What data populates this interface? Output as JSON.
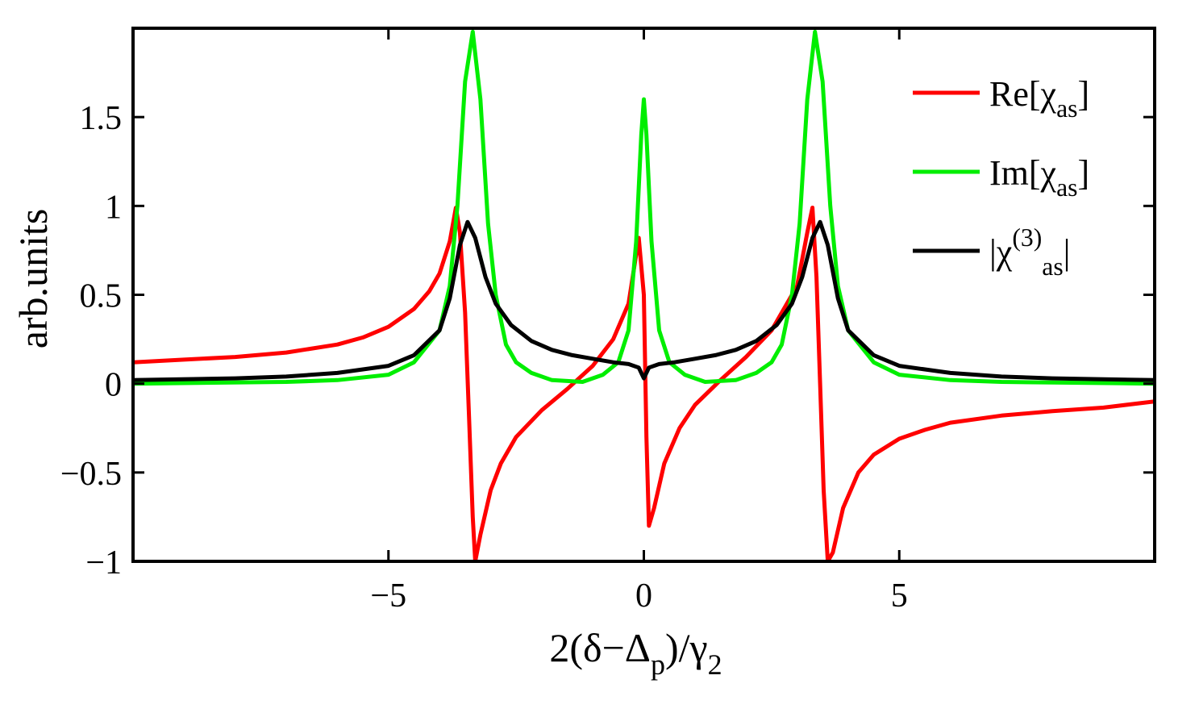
{
  "chart_data": {
    "type": "line",
    "title": "",
    "xlabel": {
      "parts": [
        {
          "text": "2(δ−Δ",
          "shift": "base"
        },
        {
          "text": "p",
          "shift": "sub"
        },
        {
          "text": ")/γ",
          "shift": "base"
        },
        {
          "text": "2",
          "shift": "sub"
        }
      ]
    },
    "ylabel": "arb.units",
    "xlim": [
      -10,
      10
    ],
    "ylim": [
      -1,
      2
    ],
    "xticks": [
      -5,
      0,
      5
    ],
    "xtick_labels": [
      "−5",
      "0",
      "5"
    ],
    "yticks": [
      -1,
      -0.5,
      0,
      0.5,
      1,
      1.5
    ],
    "ytick_labels": [
      "−1",
      "−0.5",
      "0",
      "0.5",
      "1",
      "1.5"
    ],
    "grid": false,
    "legend_position": "top-right",
    "series": [
      {
        "name": "Re[χas]",
        "legend": [
          {
            "text": "Re[χ",
            "shift": "base"
          },
          {
            "text": "as",
            "shift": "sub"
          },
          {
            "text": "]",
            "shift": "base"
          }
        ],
        "color": "#ff0000",
        "points": [
          [
            -10,
            0.12
          ],
          [
            -9,
            0.135
          ],
          [
            -8,
            0.15
          ],
          [
            -7,
            0.175
          ],
          [
            -6,
            0.22
          ],
          [
            -5.5,
            0.26
          ],
          [
            -5,
            0.32
          ],
          [
            -4.5,
            0.42
          ],
          [
            -4.2,
            0.52
          ],
          [
            -4,
            0.62
          ],
          [
            -3.8,
            0.8
          ],
          [
            -3.68,
            0.99
          ],
          [
            -3.6,
            0.85
          ],
          [
            -3.5,
            0.4
          ],
          [
            -3.42,
            -0.2
          ],
          [
            -3.35,
            -0.75
          ],
          [
            -3.3,
            -1.0
          ],
          [
            -3.2,
            -0.85
          ],
          [
            -3.0,
            -0.6
          ],
          [
            -2.8,
            -0.45
          ],
          [
            -2.5,
            -0.3
          ],
          [
            -2.0,
            -0.15
          ],
          [
            -1.5,
            -0.03
          ],
          [
            -1.0,
            0.1
          ],
          [
            -0.6,
            0.25
          ],
          [
            -0.3,
            0.45
          ],
          [
            -0.1,
            0.82
          ],
          [
            0.0,
            0.5
          ],
          [
            0.05,
            -0.3
          ],
          [
            0.1,
            -0.8
          ],
          [
            0.2,
            -0.7
          ],
          [
            0.4,
            -0.45
          ],
          [
            0.7,
            -0.25
          ],
          [
            1.0,
            -0.12
          ],
          [
            1.5,
            0.02
          ],
          [
            2.0,
            0.15
          ],
          [
            2.5,
            0.3
          ],
          [
            3.0,
            0.55
          ],
          [
            3.2,
            0.85
          ],
          [
            3.3,
            0.99
          ],
          [
            3.38,
            0.6
          ],
          [
            3.45,
            0.0
          ],
          [
            3.52,
            -0.6
          ],
          [
            3.6,
            -1.0
          ],
          [
            3.7,
            -0.95
          ],
          [
            3.9,
            -0.7
          ],
          [
            4.2,
            -0.5
          ],
          [
            4.5,
            -0.4
          ],
          [
            5.0,
            -0.31
          ],
          [
            5.5,
            -0.26
          ],
          [
            6,
            -0.22
          ],
          [
            7,
            -0.18
          ],
          [
            8,
            -0.155
          ],
          [
            9,
            -0.135
          ],
          [
            10,
            -0.1
          ]
        ]
      },
      {
        "name": "Im[χas]",
        "legend": [
          {
            "text": "Im[χ",
            "shift": "base"
          },
          {
            "text": "as",
            "shift": "sub"
          },
          {
            "text": "]",
            "shift": "base"
          }
        ],
        "color": "#00ee00",
        "points": [
          [
            -10,
            0.0
          ],
          [
            -7,
            0.01
          ],
          [
            -6,
            0.02
          ],
          [
            -5,
            0.05
          ],
          [
            -4.5,
            0.12
          ],
          [
            -4.0,
            0.3
          ],
          [
            -3.8,
            0.55
          ],
          [
            -3.65,
            1.0
          ],
          [
            -3.5,
            1.7
          ],
          [
            -3.35,
            1.98
          ],
          [
            -3.2,
            1.6
          ],
          [
            -3.05,
            0.9
          ],
          [
            -2.9,
            0.5
          ],
          [
            -2.7,
            0.22
          ],
          [
            -2.5,
            0.12
          ],
          [
            -2.2,
            0.06
          ],
          [
            -1.8,
            0.02
          ],
          [
            -1.2,
            0.01
          ],
          [
            -0.8,
            0.05
          ],
          [
            -0.5,
            0.12
          ],
          [
            -0.3,
            0.3
          ],
          [
            -0.15,
            0.8
          ],
          [
            -0.05,
            1.4
          ],
          [
            0.0,
            1.6
          ],
          [
            0.05,
            1.4
          ],
          [
            0.15,
            0.8
          ],
          [
            0.3,
            0.3
          ],
          [
            0.5,
            0.12
          ],
          [
            0.8,
            0.05
          ],
          [
            1.2,
            0.01
          ],
          [
            1.8,
            0.02
          ],
          [
            2.2,
            0.06
          ],
          [
            2.5,
            0.12
          ],
          [
            2.7,
            0.22
          ],
          [
            2.9,
            0.5
          ],
          [
            3.05,
            0.9
          ],
          [
            3.2,
            1.6
          ],
          [
            3.35,
            1.98
          ],
          [
            3.5,
            1.7
          ],
          [
            3.65,
            1.0
          ],
          [
            3.8,
            0.55
          ],
          [
            4.0,
            0.3
          ],
          [
            4.5,
            0.12
          ],
          [
            5,
            0.05
          ],
          [
            6,
            0.02
          ],
          [
            7,
            0.01
          ],
          [
            10,
            0.0
          ]
        ]
      },
      {
        "name": "|χas(3)|",
        "legend": [
          {
            "text": "|χ",
            "shift": "base"
          },
          {
            "text": "(3)",
            "shift": "sup"
          },
          {
            "text": "as",
            "shift": "sub"
          },
          {
            "text": "|",
            "shift": "base"
          }
        ],
        "color": "#000000",
        "points": [
          [
            -10,
            0.02
          ],
          [
            -8,
            0.03
          ],
          [
            -7,
            0.04
          ],
          [
            -6,
            0.06
          ],
          [
            -5,
            0.1
          ],
          [
            -4.5,
            0.16
          ],
          [
            -4.0,
            0.3
          ],
          [
            -3.8,
            0.48
          ],
          [
            -3.6,
            0.78
          ],
          [
            -3.45,
            0.91
          ],
          [
            -3.3,
            0.82
          ],
          [
            -3.1,
            0.6
          ],
          [
            -2.9,
            0.45
          ],
          [
            -2.6,
            0.33
          ],
          [
            -2.2,
            0.24
          ],
          [
            -1.8,
            0.19
          ],
          [
            -1.4,
            0.16
          ],
          [
            -1.0,
            0.14
          ],
          [
            -0.6,
            0.12
          ],
          [
            -0.3,
            0.11
          ],
          [
            -0.1,
            0.09
          ],
          [
            0.0,
            0.03
          ],
          [
            0.1,
            0.09
          ],
          [
            0.3,
            0.11
          ],
          [
            0.6,
            0.12
          ],
          [
            1.0,
            0.14
          ],
          [
            1.4,
            0.16
          ],
          [
            1.8,
            0.19
          ],
          [
            2.2,
            0.24
          ],
          [
            2.6,
            0.33
          ],
          [
            2.9,
            0.45
          ],
          [
            3.1,
            0.6
          ],
          [
            3.3,
            0.82
          ],
          [
            3.45,
            0.91
          ],
          [
            3.6,
            0.78
          ],
          [
            3.8,
            0.48
          ],
          [
            4.0,
            0.3
          ],
          [
            4.5,
            0.16
          ],
          [
            5,
            0.1
          ],
          [
            6,
            0.06
          ],
          [
            7,
            0.04
          ],
          [
            8,
            0.03
          ],
          [
            10,
            0.02
          ]
        ]
      }
    ]
  }
}
